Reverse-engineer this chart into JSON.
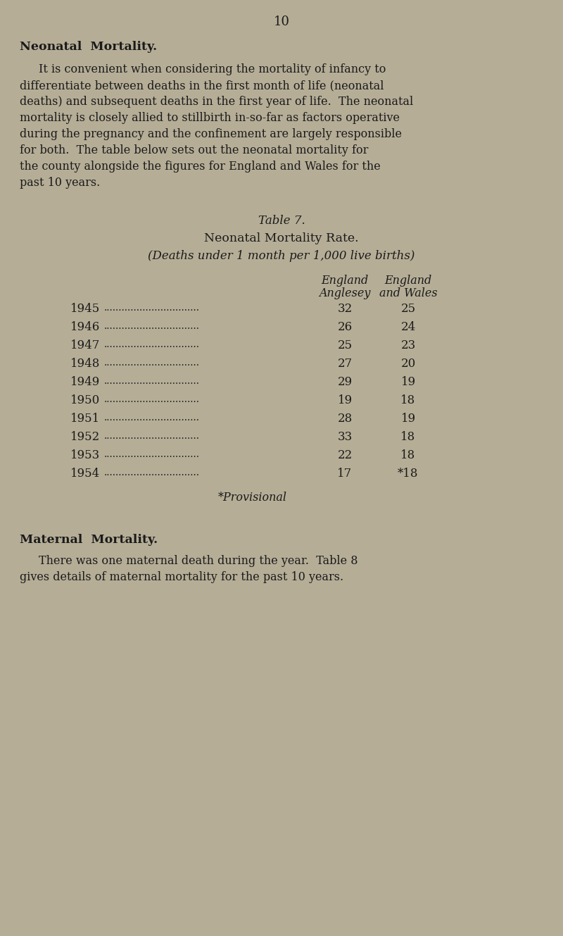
{
  "bg_color": "#b5ad96",
  "text_color": "#1a1a1a",
  "page_number": "10",
  "section1_heading": "Neonatal  Mortality.",
  "section1_body": "It is convenient when considering the mortality of infancy to differentiate between deaths in the first month of life (neonatal deaths) and subsequent deaths in the first year of life.  The neonatal mortality is closely allied to stillbirth in-so-far as factors operative during the pregnancy and the confinement are largely responsible for both.  The table below sets out the neonatal mortality for the county alongside the figures for England and Wales for the past 10 years.",
  "table_title1": "Table 7.",
  "table_title2": "Neonatal Mortality Rate.",
  "table_title3": "(Deaths under 1 month per 1,000 live births)",
  "col_header1": "Anglesey",
  "col_header2_line1": "England",
  "col_header2_line2": "and Wales",
  "years": [
    "1945",
    "1946",
    "1947",
    "1948",
    "1949",
    "1950",
    "1951",
    "1952",
    "1953",
    "1954"
  ],
  "anglesey": [
    "32",
    "26",
    "25",
    "27",
    "29",
    "19",
    "28",
    "33",
    "22",
    "17"
  ],
  "england_wales": [
    "25",
    "24",
    "23",
    "20",
    "19",
    "18",
    "19",
    "18",
    "18",
    "*18"
  ],
  "dots": "................................",
  "provisional_note": "*Provisional",
  "section2_heading": "Maternal  Mortality.",
  "section2_body": "There was one maternal death during the year.  Table 8 gives details of maternal mortality for the past 10 years."
}
